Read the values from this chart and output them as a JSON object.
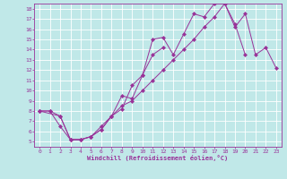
{
  "bg_color": "#c0e8e8",
  "grid_color": "#ffffff",
  "line_color": "#993399",
  "xlim": [
    -0.5,
    23.5
  ],
  "ylim": [
    4.5,
    18.5
  ],
  "xticks": [
    0,
    1,
    2,
    3,
    4,
    5,
    6,
    7,
    8,
    9,
    10,
    11,
    12,
    13,
    14,
    15,
    16,
    17,
    18,
    19,
    20,
    21,
    22,
    23
  ],
  "yticks": [
    5,
    6,
    7,
    8,
    9,
    10,
    11,
    12,
    13,
    14,
    15,
    16,
    17,
    18
  ],
  "xlabel": "Windchill (Refroidissement éolien,°C)",
  "line1_x": [
    0,
    1,
    2,
    3,
    4,
    5,
    6,
    7,
    8,
    9,
    10,
    11,
    12,
    13,
    14,
    15,
    16,
    17,
    18,
    19,
    20
  ],
  "line1_y": [
    8.0,
    8.0,
    7.5,
    5.2,
    5.2,
    5.5,
    6.5,
    7.5,
    8.2,
    10.5,
    11.5,
    15.0,
    15.2,
    13.5,
    15.5,
    17.5,
    17.2,
    18.5,
    18.5,
    16.5,
    13.5
  ],
  "line2_x": [
    0,
    1,
    2,
    3,
    4,
    5,
    6,
    7,
    8,
    9,
    10,
    11,
    12
  ],
  "line2_y": [
    8.0,
    8.0,
    6.5,
    5.2,
    5.2,
    5.5,
    6.2,
    7.5,
    9.5,
    9.2,
    11.5,
    13.5,
    14.2
  ],
  "line3_x": [
    0,
    2,
    3,
    4,
    5,
    6,
    7,
    8,
    9,
    10,
    11,
    12,
    13,
    14,
    15,
    16,
    17,
    18,
    19,
    20,
    21,
    22,
    23
  ],
  "line3_y": [
    8.0,
    7.5,
    5.2,
    5.2,
    5.5,
    6.2,
    7.5,
    8.5,
    9.0,
    10.0,
    11.0,
    12.0,
    13.0,
    14.0,
    15.0,
    16.2,
    17.2,
    18.5,
    16.2,
    17.5,
    13.5,
    14.2,
    12.2
  ]
}
